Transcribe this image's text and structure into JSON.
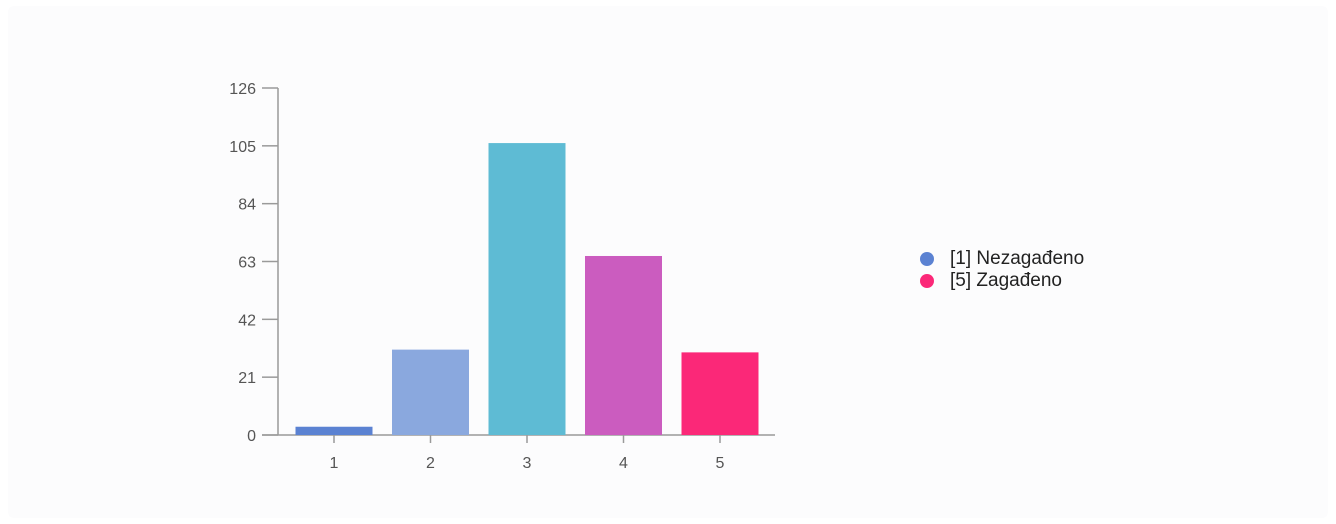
{
  "chart_data": {
    "type": "bar",
    "categories": [
      "1",
      "2",
      "3",
      "4",
      "5"
    ],
    "values": [
      3,
      31,
      106,
      65,
      30
    ],
    "bar_colors": [
      "#5b82d2",
      "#8aa8de",
      "#5ebbd4",
      "#cb5cbf",
      "#fb2878"
    ],
    "ylim": [
      0,
      126
    ],
    "yticks": [
      0,
      21,
      42,
      63,
      84,
      105,
      126
    ],
    "xlabel": "",
    "ylabel": "",
    "title": "",
    "grid": false,
    "legend_position": "right",
    "legend": [
      {
        "label": "[1] Nezagađeno",
        "color": "#5b82d2"
      },
      {
        "label": "[5] Zagađeno",
        "color": "#fb2878"
      }
    ],
    "axis_color": "#9a9a9a"
  }
}
